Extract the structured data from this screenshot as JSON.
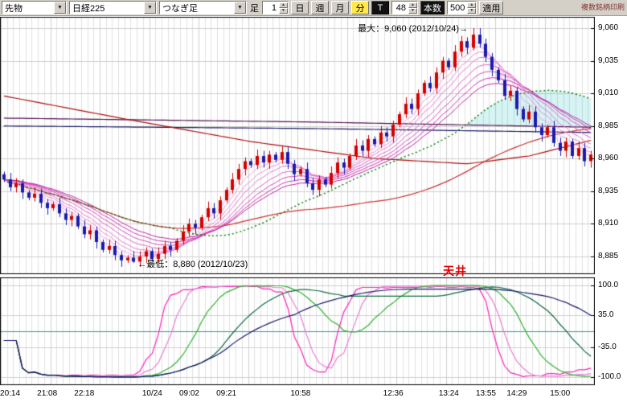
{
  "toolbar": {
    "market_select": "先物",
    "symbol_select": "日経225",
    "charttype_select": "つなぎ足",
    "ashi_label": "足",
    "interval_value": "1",
    "day_button": "日",
    "week_button": "週",
    "month_button": "月",
    "minute_button": "分",
    "tick_button": "T",
    "bars_spin": "48",
    "honsu_button": "本数",
    "count_spin": "500",
    "apply_button": "適用",
    "corner_link": "複数銘柄印刷"
  },
  "annotations": {
    "max": "最大：9,060 (2012/10/24)",
    "max_arrow": "→",
    "min_arrow": "←",
    "min": "最低：8,880 (2012/10/23)",
    "ceiling": "天井"
  },
  "main_axis": {
    "labels": [
      "9,060",
      "9,035",
      "9,010",
      "8,985",
      "8,960",
      "8,935",
      "8,910",
      "8,885"
    ],
    "values": [
      9060,
      9035,
      9010,
      8985,
      8960,
      8935,
      8910,
      8885
    ]
  },
  "sub_axis": {
    "labels": [
      "100.0",
      "35.0",
      "-35.0",
      "-100.0"
    ],
    "values": [
      100,
      35,
      -35,
      -100
    ]
  },
  "time_axis": {
    "labels": [
      "20:14",
      "21:08",
      "22:18",
      "10/24",
      "09:02",
      "09:21",
      "10:58",
      "12:36",
      "13:24",
      "13:55",
      "14:29",
      "15:00"
    ],
    "bar_indices": [
      1,
      7,
      13,
      24,
      30,
      36,
      48,
      63,
      72,
      78,
      83,
      90
    ]
  },
  "chart_data": {
    "type": "candlestick",
    "title": "日経225 先物 つなぎ足",
    "first_open": 8948,
    "closes": [
      8944,
      8938,
      8941,
      8934,
      8930,
      8933,
      8926,
      8922,
      8925,
      8918,
      8913,
      8916,
      8908,
      8902,
      8905,
      8896,
      8890,
      8893,
      8886,
      8882,
      8884,
      8881,
      8885,
      8889,
      8883,
      8887,
      8893,
      8890,
      8897,
      8904,
      8910,
      8907,
      8915,
      8922,
      8918,
      8928,
      8936,
      8944,
      8952,
      8958,
      8955,
      8962,
      8957,
      8963,
      8959,
      8965,
      8956,
      8948,
      8952,
      8941,
      8936,
      8944,
      8940,
      8949,
      8957,
      8953,
      8962,
      8970,
      8966,
      8975,
      8971,
      8980,
      8977,
      8986,
      8994,
      9002,
      8998,
      9010,
      9018,
      9014,
      9026,
      9035,
      9030,
      9042,
      9050,
      9045,
      9055,
      9048,
      9038,
      9028,
      9020,
      9008,
      9012,
      8998,
      8990,
      8996,
      8984,
      8978,
      8984,
      8972,
      8966,
      8973,
      8962,
      8968,
      8958,
      8963
    ],
    "extremes": {
      "max_bar": 76,
      "max_high": 9060,
      "min_bar": 21,
      "min_low": 8880
    },
    "price_range": [
      8872,
      9068
    ],
    "colors": {
      "up": "#d40000",
      "down": "#1a1aae",
      "grid": "#e2e2e2",
      "grid_dark": "#cfcfcf",
      "zero_line": "#2e9e9e",
      "border": "#000000"
    },
    "ribbon": {
      "periods": [
        3,
        5,
        7,
        9,
        12,
        15,
        18,
        21
      ],
      "colors": [
        "#f7b8e8",
        "#f2a3e0",
        "#ec8ed8",
        "#e579cf",
        "#dd64c6",
        "#d44fbc",
        "#ca3ab2",
        "#c026a8"
      ]
    },
    "green_ma": {
      "period": 28,
      "color": "#067806"
    },
    "red_ma": {
      "period": 60,
      "color": "#cc3333"
    },
    "red_long": {
      "color": "#aa1111",
      "anchors": [
        [
          0,
          9008
        ],
        [
          20,
          8990
        ],
        [
          40,
          8973
        ],
        [
          60,
          8960
        ],
        [
          75,
          8956
        ],
        [
          85,
          8962
        ],
        [
          95,
          8974
        ]
      ]
    },
    "flat_lines": [
      {
        "color": "#50104f",
        "anchors": [
          [
            0,
            8991
          ],
          [
            50,
            8988
          ],
          [
            95,
            8984
          ]
        ]
      },
      {
        "color": "#1a1a66",
        "anchors": [
          [
            0,
            8985
          ],
          [
            50,
            8983
          ],
          [
            95,
            8980
          ]
        ]
      }
    ],
    "band_fill": "rgba(0,185,185,0.16)",
    "oscillator": {
      "type": "rci",
      "range": [
        -115,
        115
      ],
      "periods": [
        9,
        13,
        21,
        34,
        48
      ],
      "colors": [
        "#ff22bb",
        "#e87fd4",
        "#2db32d",
        "#0d6b3c",
        "#16166b"
      ]
    }
  }
}
